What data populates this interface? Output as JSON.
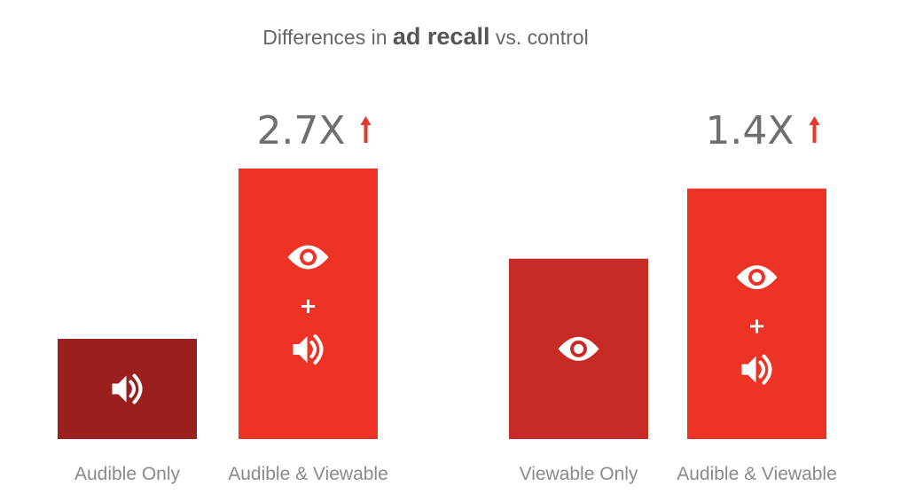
{
  "title": {
    "prefix": "Differences in ",
    "emphasis": "ad recall",
    "suffix": " vs. control"
  },
  "chart_data": {
    "type": "bar",
    "categories": [
      "Audible Only",
      "Audible & Viewable",
      "Viewable Only",
      "Audible & Viewable"
    ],
    "values": [
      1.0,
      2.7,
      1.8,
      2.5
    ],
    "multiplier_labels": [
      "",
      "2.7X",
      "",
      "1.4X"
    ],
    "bar_icons": [
      [
        "speaker-icon"
      ],
      [
        "eye-icon",
        "plus-icon",
        "speaker-icon"
      ],
      [
        "eye-icon"
      ],
      [
        "eye-icon",
        "plus-icon",
        "speaker-icon"
      ]
    ],
    "plus_glyph": "+",
    "up_arrow_icon": "arrow-up-icon",
    "colors": [
      "#9b1f1c",
      "#ec3325",
      "#c62b26",
      "#ec3325"
    ],
    "arrow_color": "#e53a2b",
    "ylim": [
      0,
      3
    ],
    "grid": false,
    "xlabel": "",
    "ylabel": ""
  }
}
